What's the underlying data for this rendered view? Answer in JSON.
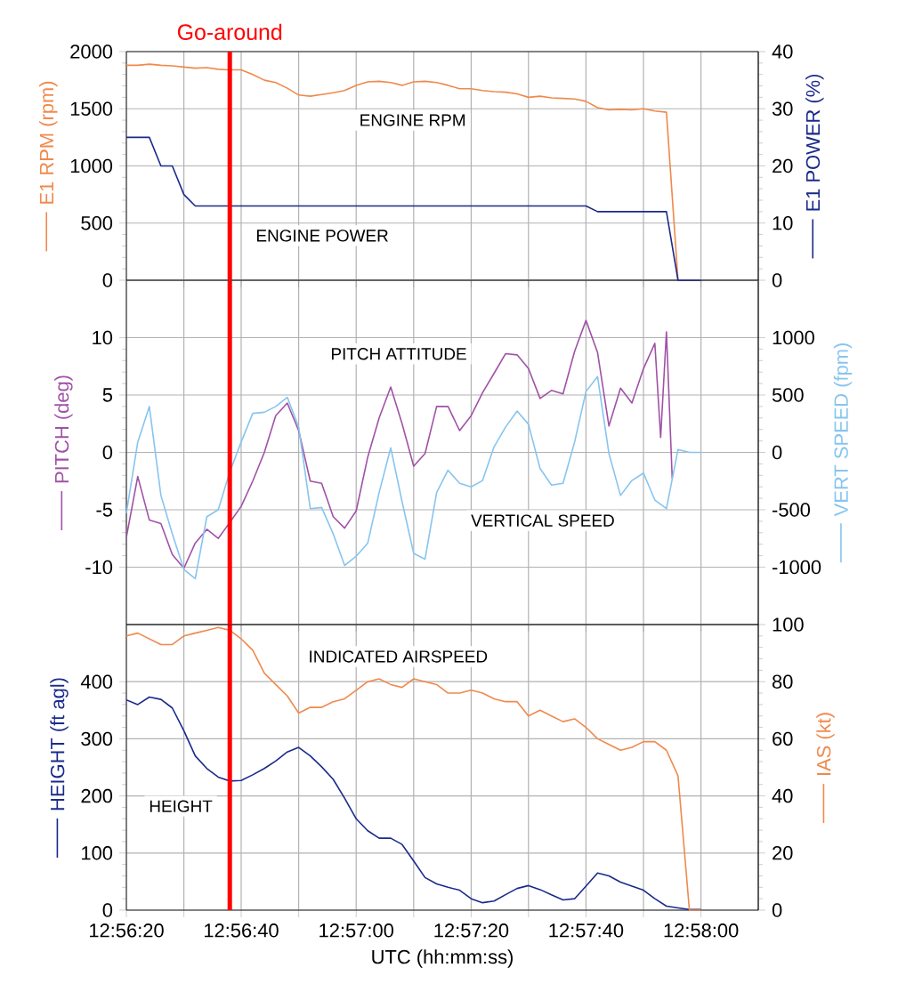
{
  "chart_data": [
    {
      "type": "line",
      "x": [
        12.93889,
        12.93944,
        12.94,
        12.94056,
        12.94111,
        12.94167,
        12.94222,
        12.94278,
        12.94333,
        12.94389,
        12.94444,
        12.945,
        12.94556,
        12.94611,
        12.94667,
        12.94722,
        12.94778,
        12.94833,
        12.94889,
        12.94944,
        12.95,
        12.95056,
        12.95111,
        12.95167,
        12.95222,
        12.95278,
        12.95333,
        12.95389,
        12.95444,
        12.955,
        12.95556,
        12.95611,
        12.95667,
        12.95722,
        12.95778,
        12.95833,
        12.95889,
        12.95944,
        12.96,
        12.96056,
        12.96111,
        12.96167,
        12.96222,
        12.96278,
        12.96333,
        12.96389,
        12.96444,
        12.965,
        12.96556,
        12.96611,
        12.96667
      ],
      "xlim": [
        12.93889,
        12.96944
      ],
      "xticks": [
        {
          "value": 12.93889,
          "label": null
        },
        {
          "value": 12.94167,
          "label": null
        },
        {
          "value": 12.94444,
          "label": null
        },
        {
          "value": 12.94722,
          "label": null
        },
        {
          "value": 12.95,
          "label": null
        },
        {
          "value": 12.95278,
          "label": null
        },
        {
          "value": 12.95556,
          "label": null
        },
        {
          "value": 12.95833,
          "label": null
        },
        {
          "value": 12.96111,
          "label": null
        },
        {
          "value": 12.96389,
          "label": null
        },
        {
          "value": 12.96667,
          "label": null
        }
      ],
      "ylim": [
        0,
        2000
      ],
      "yticks": [
        0,
        500,
        1000,
        1500,
        2000
      ],
      "y2lim": [
        0,
        40
      ],
      "y2ticks": [
        0,
        10,
        20,
        30,
        40
      ],
      "ylabel": "E1 RPM (rpm)",
      "y2label": "E1 POWER (%)",
      "series": [
        {
          "name": "ENGINE RPM",
          "color": "#f0894c",
          "values": [
            1880,
            1880,
            1890,
            1880,
            1875,
            1865,
            1855,
            1860,
            1845,
            1840,
            1840,
            1800,
            1750,
            1730,
            1680,
            1620,
            1610,
            1625,
            1640,
            1660,
            1705,
            1735,
            1740,
            1730,
            1705,
            1735,
            1740,
            1730,
            1705,
            1675,
            1675,
            1660,
            1650,
            1645,
            1630,
            1600,
            1610,
            1595,
            1590,
            1585,
            1565,
            1510,
            1490,
            1495,
            1490,
            1500,
            1480,
            1470,
            0,
            0,
            0
          ]
        },
        {
          "name": "ENGINE POWER",
          "color": "#1a2a8c",
          "axis": "y2",
          "values": [
            25,
            25,
            25,
            20,
            20,
            15,
            13,
            13,
            13,
            13,
            13,
            13,
            13,
            13,
            13,
            13,
            13,
            13,
            13,
            13,
            13,
            13,
            13,
            13,
            13,
            13,
            13,
            13,
            13,
            13,
            13,
            13,
            13,
            13,
            13,
            13,
            13,
            13,
            13,
            13,
            13,
            12,
            12,
            12,
            12,
            12,
            12,
            12,
            0,
            0,
            0
          ]
        }
      ],
      "ref_lines": [
        {
          "axis": "x",
          "value": 12.94389,
          "label": "Go-around",
          "color": "#ff0000"
        }
      ],
      "grid": true,
      "tick_labels": "y"
    },
    {
      "type": "line",
      "x": [
        12.93889,
        12.93944,
        12.94,
        12.94056,
        12.94111,
        12.94167,
        12.94222,
        12.94278,
        12.94333,
        12.94389,
        12.94444,
        12.945,
        12.94556,
        12.94611,
        12.94667,
        12.94722,
        12.94778,
        12.94833,
        12.94889,
        12.94944,
        12.95,
        12.95056,
        12.95111,
        12.95167,
        12.95222,
        12.95278,
        12.95333,
        12.95389,
        12.95444,
        12.955,
        12.95556,
        12.95611,
        12.95667,
        12.95722,
        12.95778,
        12.95833,
        12.95889,
        12.95944,
        12.96,
        12.96056,
        12.96111,
        12.96167,
        12.96222,
        12.96278,
        12.96333,
        12.96389,
        12.96444,
        12.965,
        12.96556,
        12.96611,
        12.96667
      ],
      "xlim": [
        12.93889,
        12.96944
      ],
      "xticks": [
        {
          "value": 12.93889,
          "label": null
        },
        {
          "value": 12.94167,
          "label": null
        },
        {
          "value": 12.94444,
          "label": null
        },
        {
          "value": 12.94722,
          "label": null
        },
        {
          "value": 12.95,
          "label": null
        },
        {
          "value": 12.95278,
          "label": null
        },
        {
          "value": 12.95556,
          "label": null
        },
        {
          "value": 12.95833,
          "label": null
        },
        {
          "value": 12.96111,
          "label": null
        },
        {
          "value": 12.96389,
          "label": null
        },
        {
          "value": 12.96667,
          "label": null
        }
      ],
      "ylim": [
        -15,
        15
      ],
      "yticks": [
        -10,
        -5,
        0,
        5,
        10
      ],
      "y2lim": [
        -1500,
        1500
      ],
      "y2ticks": [
        -1000,
        -500,
        0,
        500,
        1000
      ],
      "ylabel": "PITCH (deg)",
      "y2label": "VERT SPEED (fpm)",
      "series": [
        {
          "name": "PITCH ATTITUDE",
          "color": "#a052a6",
          "x": [
            12.93889,
            12.93944,
            12.94,
            12.94056,
            12.94111,
            12.94167,
            12.94222,
            12.94278,
            12.94333,
            12.94389,
            12.94444,
            12.945,
            12.94556,
            12.94611,
            12.94667,
            12.94722,
            12.94778,
            12.94833,
            12.94889,
            12.94944,
            12.95,
            12.95056,
            12.95111,
            12.95167,
            12.95222,
            12.95278,
            12.95333,
            12.95389,
            12.95444,
            12.955,
            12.95556,
            12.95611,
            12.95667,
            12.95722,
            12.95778,
            12.95833,
            12.95889,
            12.95944,
            12.96,
            12.96056,
            12.96111,
            12.96167,
            12.96222,
            12.96278,
            12.96333,
            12.96389,
            12.96444,
            12.96472,
            12.965,
            12.96528
          ],
          "values": [
            -7.4,
            -2.1,
            -5.9,
            -6.2,
            -8.9,
            -10.1,
            -7.9,
            -6.7,
            -7.5,
            -6.1,
            -4.7,
            -2.5,
            0,
            3.2,
            4.3,
            1.9,
            -2.5,
            -2.7,
            -5.6,
            -6.6,
            -5.1,
            -0.4,
            3.0,
            5.7,
            2.5,
            -1.2,
            -0.1,
            4.0,
            4.0,
            1.9,
            3.2,
            5.2,
            6.9,
            8.6,
            8.5,
            7.3,
            4.7,
            5.4,
            5.1,
            8.8,
            11.5,
            8.7,
            2.3,
            5.6,
            4.3,
            7.3,
            9.5,
            1.3,
            10.5,
            -2.3
          ]
        },
        {
          "name": "VERTICAL SPEED",
          "color": "#86c5f0",
          "axis": "y2",
          "values": [
            -530,
            90,
            400,
            -375,
            -710,
            -1020,
            -1100,
            -560,
            -500,
            -170,
            90,
            340,
            350,
            400,
            480,
            220,
            -490,
            -480,
            -710,
            -985,
            -905,
            -790,
            -350,
            40,
            -430,
            -880,
            -930,
            -350,
            -155,
            -270,
            -300,
            -245,
            50,
            220,
            360,
            245,
            -140,
            -285,
            -270,
            90,
            530,
            660,
            -10,
            -375,
            -245,
            -180,
            -415,
            -490,
            25,
            0,
            0
          ]
        }
      ],
      "ref_lines": [
        {
          "axis": "x",
          "value": 12.94389,
          "color": "#ff0000"
        }
      ],
      "grid": true,
      "tick_labels": "y"
    },
    {
      "type": "line",
      "x": [
        12.93889,
        12.93944,
        12.94,
        12.94056,
        12.94111,
        12.94167,
        12.94222,
        12.94278,
        12.94333,
        12.94389,
        12.94444,
        12.945,
        12.94556,
        12.94611,
        12.94667,
        12.94722,
        12.94778,
        12.94833,
        12.94889,
        12.94944,
        12.95,
        12.95056,
        12.95111,
        12.95167,
        12.95222,
        12.95278,
        12.95333,
        12.95389,
        12.95444,
        12.955,
        12.95556,
        12.95611,
        12.95667,
        12.95722,
        12.95778,
        12.95833,
        12.95889,
        12.95944,
        12.96,
        12.96056,
        12.96111,
        12.96167,
        12.96222,
        12.96278,
        12.96333,
        12.96389,
        12.96444,
        12.965,
        12.96556,
        12.96611,
        12.96667
      ],
      "xlim": [
        12.93889,
        12.96944
      ],
      "xticks": [
        {
          "value": 12.93889,
          "label": "12:56:20"
        },
        {
          "value": 12.94167,
          "label": null
        },
        {
          "value": 12.94444,
          "label": "12:56:40"
        },
        {
          "value": 12.94722,
          "label": null
        },
        {
          "value": 12.95,
          "label": "12:57:00"
        },
        {
          "value": 12.95278,
          "label": null
        },
        {
          "value": 12.95556,
          "label": "12:57:20"
        },
        {
          "value": 12.95833,
          "label": null
        },
        {
          "value": 12.96111,
          "label": "12:57:40"
        },
        {
          "value": 12.96389,
          "label": null
        },
        {
          "value": 12.96667,
          "label": "12:58:00"
        }
      ],
      "ylim": [
        0,
        500
      ],
      "yticks": [
        0,
        100,
        200,
        300,
        400
      ],
      "y2lim": [
        0,
        100
      ],
      "y2ticks": [
        0,
        20,
        40,
        60,
        80,
        100
      ],
      "xlabel": "UTC (hh:mm:ss)",
      "ylabel": "HEIGHT (ft agl)",
      "y2label": "IAS (kt)",
      "series": [
        {
          "name": "INDICATED AIRSPEED",
          "color": "#f0894c",
          "axis": "y2",
          "values": [
            96,
            97,
            95,
            93,
            93,
            96,
            97,
            98,
            99,
            98,
            95,
            91,
            83,
            79,
            75,
            69,
            71,
            71,
            73,
            74,
            77,
            80,
            81,
            79,
            78,
            81,
            80,
            79,
            76,
            76,
            77,
            76,
            74,
            73,
            73,
            68,
            70,
            68,
            66,
            67,
            64,
            60,
            58,
            56,
            57,
            59,
            59,
            56,
            47,
            0,
            0
          ]
        },
        {
          "name": "HEIGHT",
          "color": "#1a2a8c",
          "values": [
            368,
            360,
            373,
            369,
            354,
            314,
            270,
            248,
            233,
            226,
            227,
            237,
            248,
            261,
            277,
            285,
            270,
            251,
            229,
            196,
            160,
            139,
            126,
            126,
            115,
            86,
            57,
            46,
            40,
            35,
            20,
            13,
            16,
            27,
            38,
            43,
            36,
            27,
            18,
            20,
            42,
            65,
            60,
            49,
            42,
            35,
            20,
            7,
            4,
            1,
            1
          ]
        }
      ],
      "ref_lines": [
        {
          "axis": "x",
          "value": 12.94389,
          "color": "#ff0000"
        }
      ],
      "grid": true
    }
  ]
}
